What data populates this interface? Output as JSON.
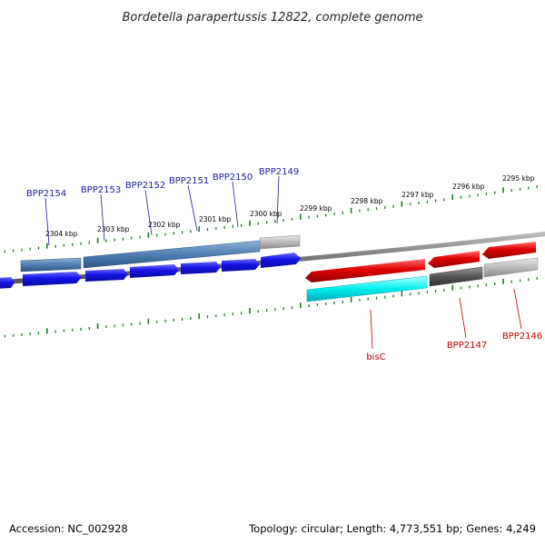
{
  "title": "Bordetella parapertussis 12822, complete genome",
  "footer": {
    "accession": "Accession: NC_002928",
    "stats": "Topology: circular; Length: 4,773,551 bp; Genes: 4,249"
  },
  "kbp_ticks": [
    "2304 kbp",
    "2303 kbp",
    "2302 kbp",
    "2301 kbp",
    "2300 kbp",
    "2299 kbp",
    "2298 kbp",
    "2297 kbp",
    "2296 kbp",
    "2295 kbp"
  ],
  "genes_upper": [
    "BPP2154",
    "BPP2153",
    "BPP2152",
    "BPP2151",
    "BPP2150",
    "BPP2149"
  ],
  "genes_lower": [
    "bisC",
    "BPP2147",
    "BPP2146"
  ],
  "colors": {
    "tick": "#1a7a1a",
    "backbone": "#777777",
    "blue_gene": "#1414e6",
    "blue_label": "#1a1aa0",
    "steel_blue": "#4f7fb0",
    "red_gene": "#e00000",
    "red_label": "#c00000",
    "cyan": "#00f0f0",
    "dark_grey": "#555555",
    "light_grey": "#bbbbbb"
  }
}
